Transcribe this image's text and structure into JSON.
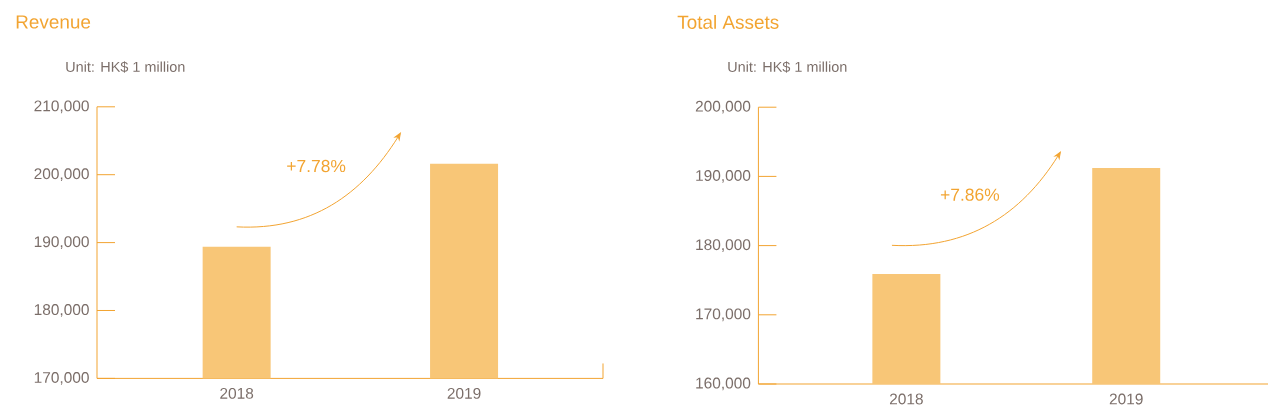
{
  "chart_data": [
    {
      "type": "bar",
      "title": "Revenue",
      "subtitle": "Unit: HK$ 1 million",
      "categories": [
        "2018",
        "2019"
      ],
      "values": [
        189400,
        201600
      ],
      "color": "#f8c677",
      "ylim": [
        170000,
        210000
      ],
      "yticks": [
        {
          "value": 170000,
          "label": "170,000"
        },
        {
          "value": 180000,
          "label": "180,000"
        },
        {
          "value": 190000,
          "label": "190,000"
        },
        {
          "value": 200000,
          "label": "200,000"
        },
        {
          "value": 210000,
          "label": "210,000"
        }
      ],
      "annotations": [
        "+7.78%"
      ]
    },
    {
      "type": "bar",
      "title": "Total Assets",
      "subtitle": "Unit: HK$ 1 million",
      "categories": [
        "2018",
        "2019"
      ],
      "values": [
        175900,
        191200
      ],
      "color": "#f8c677",
      "ylim": [
        160000,
        200000
      ],
      "yticks": [
        {
          "value": 160000,
          "label": "160,000"
        },
        {
          "value": 170000,
          "label": "170,000"
        },
        {
          "value": 180000,
          "label": "180,000"
        },
        {
          "value": 190000,
          "label": "190,000"
        },
        {
          "value": 200000,
          "label": "200,000"
        }
      ],
      "annotations": [
        "+7.86%"
      ]
    }
  ]
}
